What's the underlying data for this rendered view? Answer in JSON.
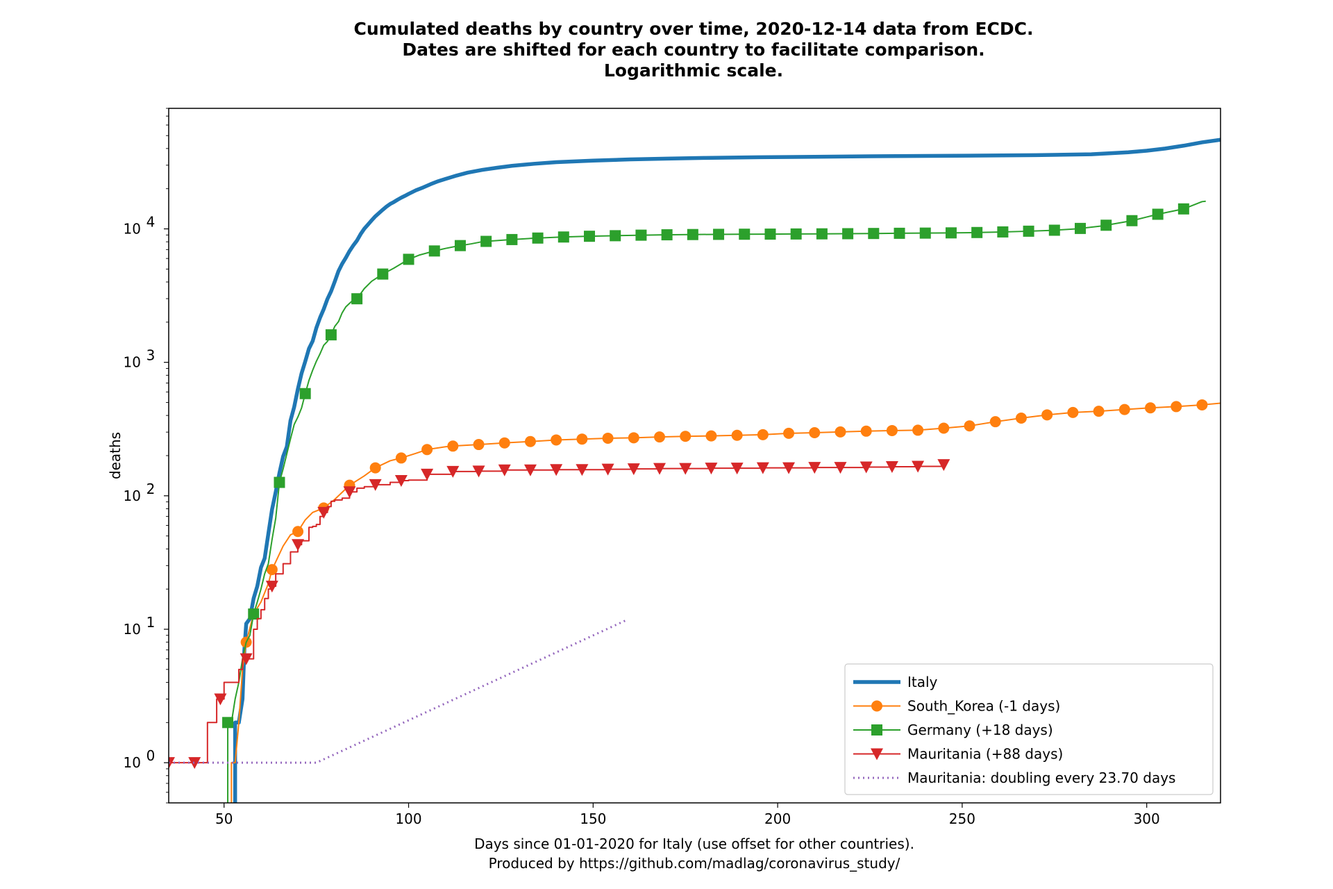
{
  "chart_data": {
    "type": "line",
    "title": "Cumulated deaths by country over time, 2020-12-14 data from ECDC.",
    "subtitle": "Dates are shifted for each country to facilitate comparison.",
    "subtitle2": "Logarithmic scale.",
    "xlabel": "Days since 01-01-2020 for Italy (use offset for other countries).",
    "xlabel2": "Produced by https://github.com/madlag/coronavirus_study/",
    "ylabel": "deaths",
    "yscale": "log",
    "xlim": [
      35,
      320
    ],
    "ylim": [
      0.5,
      80000
    ],
    "x_ticks": [
      50,
      100,
      150,
      200,
      250,
      300
    ],
    "y_ticks": [
      {
        "value": 1,
        "base": "10",
        "exp": "0"
      },
      {
        "value": 10,
        "base": "10",
        "exp": "1"
      },
      {
        "value": 100,
        "base": "10",
        "exp": "2"
      },
      {
        "value": 1000,
        "base": "10",
        "exp": "3"
      },
      {
        "value": 10000,
        "base": "10",
        "exp": "4"
      }
    ],
    "grid": false,
    "legend_position": "lower-right",
    "series": [
      {
        "name": "Italy",
        "color": "#1f77b4",
        "marker": "none",
        "style": "solid-thick",
        "points": [
          [
            53,
            0.4
          ],
          [
            53,
            2
          ],
          [
            54,
            2
          ],
          [
            55,
            3
          ],
          [
            55.5,
            7
          ],
          [
            56,
            11
          ],
          [
            57,
            12
          ],
          [
            58,
            17
          ],
          [
            59,
            21
          ],
          [
            60,
            29
          ],
          [
            61,
            34
          ],
          [
            62,
            52
          ],
          [
            63,
            79
          ],
          [
            64,
            107
          ],
          [
            65,
            148
          ],
          [
            66,
            197
          ],
          [
            67,
            233
          ],
          [
            68,
            366
          ],
          [
            69,
            463
          ],
          [
            70,
            631
          ],
          [
            71,
            827
          ],
          [
            72,
            1016
          ],
          [
            73,
            1266
          ],
          [
            74,
            1441
          ],
          [
            75,
            1809
          ],
          [
            76,
            2158
          ],
          [
            77,
            2503
          ],
          [
            78,
            2978
          ],
          [
            79,
            3405
          ],
          [
            80,
            4032
          ],
          [
            81,
            4825
          ],
          [
            82,
            5476
          ],
          [
            83,
            6077
          ],
          [
            84,
            6820
          ],
          [
            85,
            7503
          ],
          [
            86,
            8165
          ],
          [
            87,
            9134
          ],
          [
            88,
            10023
          ],
          [
            89,
            10779
          ],
          [
            90,
            11591
          ],
          [
            91,
            12428
          ],
          [
            92,
            13155
          ],
          [
            93,
            13915
          ],
          [
            94,
            14681
          ],
          [
            95,
            15362
          ],
          [
            96,
            15887
          ],
          [
            97,
            16523
          ],
          [
            98,
            17127
          ],
          [
            99,
            17669
          ],
          [
            100,
            18279
          ],
          [
            102,
            19468
          ],
          [
            104,
            20465
          ],
          [
            106,
            21645
          ],
          [
            108,
            22745
          ],
          [
            110,
            23660
          ],
          [
            113,
            25085
          ],
          [
            116,
            26384
          ],
          [
            120,
            27682
          ],
          [
            124,
            28710
          ],
          [
            128,
            29684
          ],
          [
            134,
            30739
          ],
          [
            140,
            31610
          ],
          [
            150,
            32486
          ],
          [
            160,
            33142
          ],
          [
            170,
            33601
          ],
          [
            180,
            34000
          ],
          [
            195,
            34400
          ],
          [
            210,
            34700
          ],
          [
            225,
            35000
          ],
          [
            240,
            35200
          ],
          [
            255,
            35400
          ],
          [
            270,
            35700
          ],
          [
            285,
            36200
          ],
          [
            295,
            37500
          ],
          [
            300,
            38500
          ],
          [
            305,
            40000
          ],
          [
            310,
            42000
          ],
          [
            315,
            44500
          ],
          [
            320,
            46500
          ]
        ]
      },
      {
        "name": "South_Korea (-1 days)",
        "color": "#ff7f0e",
        "marker": "circle",
        "style": "solid",
        "points": [
          [
            52,
            0.4
          ],
          [
            52,
            1
          ],
          [
            53,
            1
          ],
          [
            54,
            2
          ],
          [
            55,
            5
          ],
          [
            56,
            8
          ],
          [
            58,
            13
          ],
          [
            60,
            16
          ],
          [
            62,
            22
          ],
          [
            63,
            28
          ],
          [
            64,
            32
          ],
          [
            66,
            42
          ],
          [
            68,
            51
          ],
          [
            70,
            54
          ],
          [
            72,
            66
          ],
          [
            74,
            75
          ],
          [
            77,
            81
          ],
          [
            80,
            94
          ],
          [
            84,
            120
          ],
          [
            88,
            141
          ],
          [
            91,
            162
          ],
          [
            95,
            183
          ],
          [
            98,
            192
          ],
          [
            102,
            208
          ],
          [
            105,
            222
          ],
          [
            110,
            233
          ],
          [
            113,
            237
          ],
          [
            120,
            243
          ],
          [
            127,
            250
          ],
          [
            133,
            255
          ],
          [
            140,
            262
          ],
          [
            147,
            266
          ],
          [
            154,
            270
          ],
          [
            161,
            272
          ],
          [
            168,
            276
          ],
          [
            175,
            279
          ],
          [
            182,
            281
          ],
          [
            189,
            284
          ],
          [
            196,
            287
          ],
          [
            203,
            294
          ],
          [
            210,
            297
          ],
          [
            217,
            301
          ],
          [
            224,
            305
          ],
          [
            231,
            308
          ],
          [
            238,
            310
          ],
          [
            245,
            321
          ],
          [
            252,
            334
          ],
          [
            259,
            359
          ],
          [
            266,
            382
          ],
          [
            273,
            404
          ],
          [
            280,
            421
          ],
          [
            287,
            430
          ],
          [
            294,
            443
          ],
          [
            301,
            456
          ],
          [
            308,
            466
          ],
          [
            315,
            480
          ],
          [
            320,
            494
          ]
        ]
      },
      {
        "name": "Germany (+18 days)",
        "color": "#2ca02c",
        "marker": "square",
        "style": "solid",
        "points": [
          [
            51,
            0.4
          ],
          [
            51,
            2
          ],
          [
            52,
            2
          ],
          [
            53,
            3
          ],
          [
            54,
            4
          ],
          [
            55,
            6
          ],
          [
            56,
            8
          ],
          [
            57,
            9
          ],
          [
            58,
            13
          ],
          [
            59,
            16
          ],
          [
            60,
            20
          ],
          [
            61,
            26
          ],
          [
            62,
            31
          ],
          [
            63,
            47
          ],
          [
            64,
            68
          ],
          [
            65,
            126
          ],
          [
            66,
            159
          ],
          [
            67,
            206
          ],
          [
            68,
            267
          ],
          [
            69,
            342
          ],
          [
            70,
            389
          ],
          [
            71,
            455
          ],
          [
            72,
            583
          ],
          [
            73,
            732
          ],
          [
            74,
            872
          ],
          [
            75,
            1017
          ],
          [
            76,
            1158
          ],
          [
            77,
            1342
          ],
          [
            78,
            1434
          ],
          [
            79,
            1607
          ],
          [
            80,
            1861
          ],
          [
            81,
            2016
          ],
          [
            82,
            2349
          ],
          [
            83,
            2607
          ],
          [
            84,
            2767
          ],
          [
            85,
            2931
          ],
          [
            86,
            2994
          ],
          [
            88,
            3569
          ],
          [
            90,
            4052
          ],
          [
            93,
            4586
          ],
          [
            96,
            5075
          ],
          [
            100,
            5913
          ],
          [
            103,
            6375
          ],
          [
            107,
            6831
          ],
          [
            110,
            7138
          ],
          [
            113,
            7417
          ],
          [
            117,
            7725
          ],
          [
            120,
            8022
          ],
          [
            127,
            8283
          ],
          [
            134,
            8511
          ],
          [
            141,
            8674
          ],
          [
            148,
            8790
          ],
          [
            155,
            8876
          ],
          [
            162,
            8961
          ],
          [
            169,
            9024
          ],
          [
            176,
            9063
          ],
          [
            183,
            9094
          ],
          [
            190,
            9117
          ],
          [
            197,
            9131
          ],
          [
            204,
            9154
          ],
          [
            211,
            9175
          ],
          [
            218,
            9197
          ],
          [
            225,
            9230
          ],
          [
            232,
            9263
          ],
          [
            239,
            9290
          ],
          [
            246,
            9325
          ],
          [
            253,
            9376
          ],
          [
            260,
            9471
          ],
          [
            267,
            9586
          ],
          [
            274,
            9731
          ],
          [
            281,
            10003
          ],
          [
            288,
            10530
          ],
          [
            296,
            11520
          ],
          [
            303,
            12870
          ],
          [
            310,
            14112
          ],
          [
            315,
            16000
          ],
          [
            316,
            16100
          ]
        ]
      },
      {
        "name": "Mauritania (+88 days)",
        "color": "#d62728",
        "marker": "triangle-down",
        "style": "steps",
        "points": [
          [
            35,
            1
          ],
          [
            42,
            1
          ],
          [
            45,
            1
          ],
          [
            45.5,
            2
          ],
          [
            47,
            2
          ],
          [
            48,
            3
          ],
          [
            49,
            3
          ],
          [
            50,
            4
          ],
          [
            53,
            4
          ],
          [
            54,
            5
          ],
          [
            55,
            6
          ],
          [
            57,
            6
          ],
          [
            58,
            10
          ],
          [
            59,
            12
          ],
          [
            60,
            14
          ],
          [
            61,
            17
          ],
          [
            62,
            20
          ],
          [
            63,
            21
          ],
          [
            64,
            26
          ],
          [
            65,
            26
          ],
          [
            66,
            31
          ],
          [
            67,
            31
          ],
          [
            68,
            38
          ],
          [
            69,
            38
          ],
          [
            70,
            43
          ],
          [
            71,
            46
          ],
          [
            72,
            46
          ],
          [
            73,
            58
          ],
          [
            74,
            59
          ],
          [
            75,
            61
          ],
          [
            76,
            70
          ],
          [
            77,
            75
          ],
          [
            78,
            83
          ],
          [
            79,
            91
          ],
          [
            80,
            93
          ],
          [
            82,
            96
          ],
          [
            84,
            107
          ],
          [
            86,
            114
          ],
          [
            88,
            117
          ],
          [
            91,
            121
          ],
          [
            95,
            126
          ],
          [
            98,
            130
          ],
          [
            100,
            131
          ],
          [
            105,
            145
          ],
          [
            112,
            152
          ],
          [
            119,
            153
          ],
          [
            126,
            156
          ],
          [
            133,
            156
          ],
          [
            140,
            157
          ],
          [
            147,
            157
          ],
          [
            154,
            158
          ],
          [
            161,
            159
          ],
          [
            168,
            160
          ],
          [
            175,
            160
          ],
          [
            182,
            161
          ],
          [
            189,
            161
          ],
          [
            196,
            162
          ],
          [
            203,
            162
          ],
          [
            210,
            163
          ],
          [
            217,
            163
          ],
          [
            224,
            164
          ],
          [
            231,
            165
          ],
          [
            238,
            166
          ],
          [
            245,
            171
          ]
        ]
      },
      {
        "name": "Mauritania: doubling every 23.70 days",
        "color": "#9467bd",
        "marker": "none",
        "style": "dotted",
        "points": [
          [
            35,
            1
          ],
          [
            75,
            1
          ],
          [
            159,
            11.7
          ]
        ]
      }
    ]
  }
}
